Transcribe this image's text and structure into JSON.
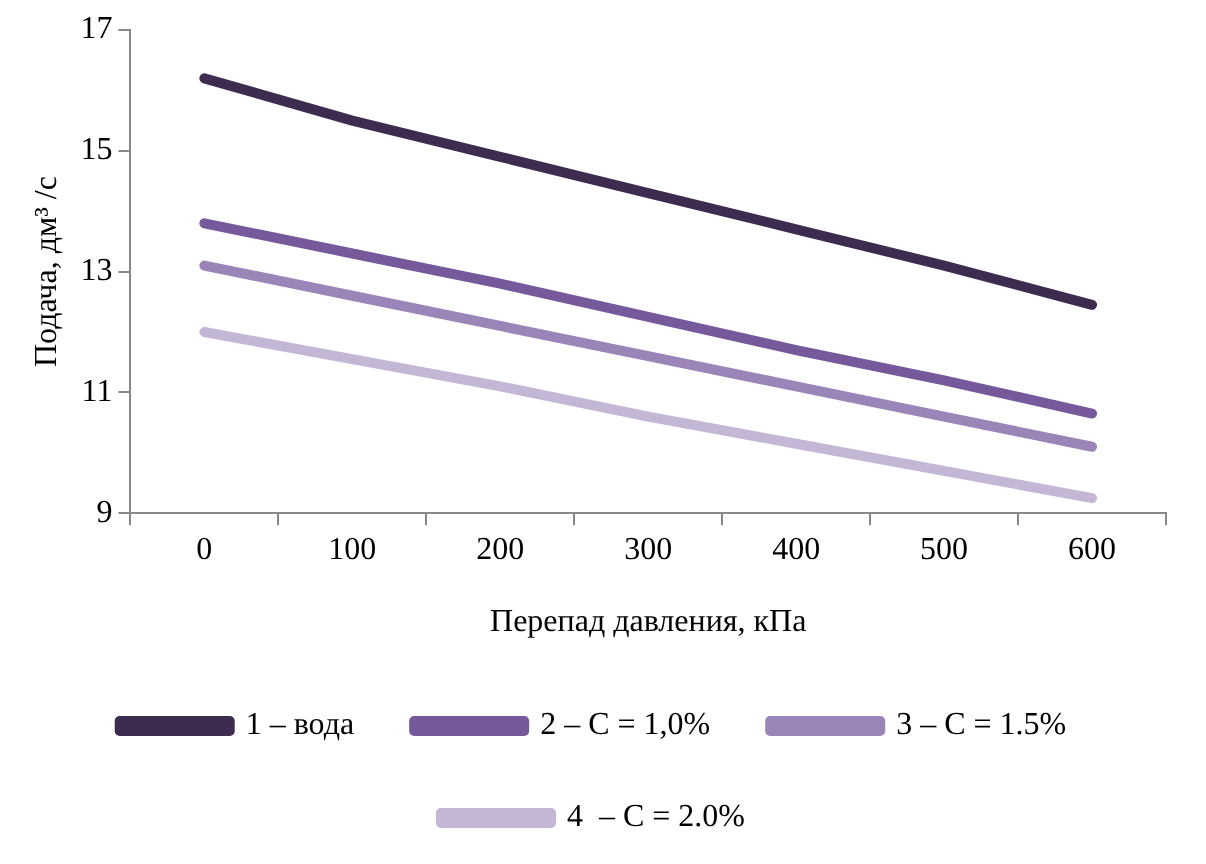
{
  "chart_data": {
    "type": "line",
    "xlabel": "Перепад давления, кПа",
    "ylabel": "Подача, дм³ /с",
    "categories": [
      "0",
      "100",
      "200",
      "300",
      "400",
      "500",
      "600"
    ],
    "series": [
      {
        "name": "1 – вода",
        "color": "#3d2c4f",
        "values": [
          16.2,
          15.5,
          14.9,
          14.3,
          13.7,
          13.1,
          12.45
        ]
      },
      {
        "name": "2 – C = 1,0%",
        "color": "#76599a",
        "values": [
          13.8,
          13.3,
          12.8,
          12.25,
          11.7,
          11.2,
          10.65
        ]
      },
      {
        "name": "3 – C = 1.5%",
        "color": "#9b85b8",
        "values": [
          13.1,
          12.6,
          12.1,
          11.6,
          11.1,
          10.6,
          10.1
        ]
      },
      {
        "name": "4  – C = 2.0%",
        "color": "#c4b7d6",
        "values": [
          12.0,
          11.55,
          11.1,
          10.6,
          10.15,
          9.7,
          9.25
        ]
      }
    ],
    "ylim": [
      9,
      17
    ],
    "yticks": [
      9,
      11,
      13,
      15,
      17
    ],
    "grid": false,
    "legend": "bottom",
    "marker": "none",
    "line_style": "solid"
  }
}
